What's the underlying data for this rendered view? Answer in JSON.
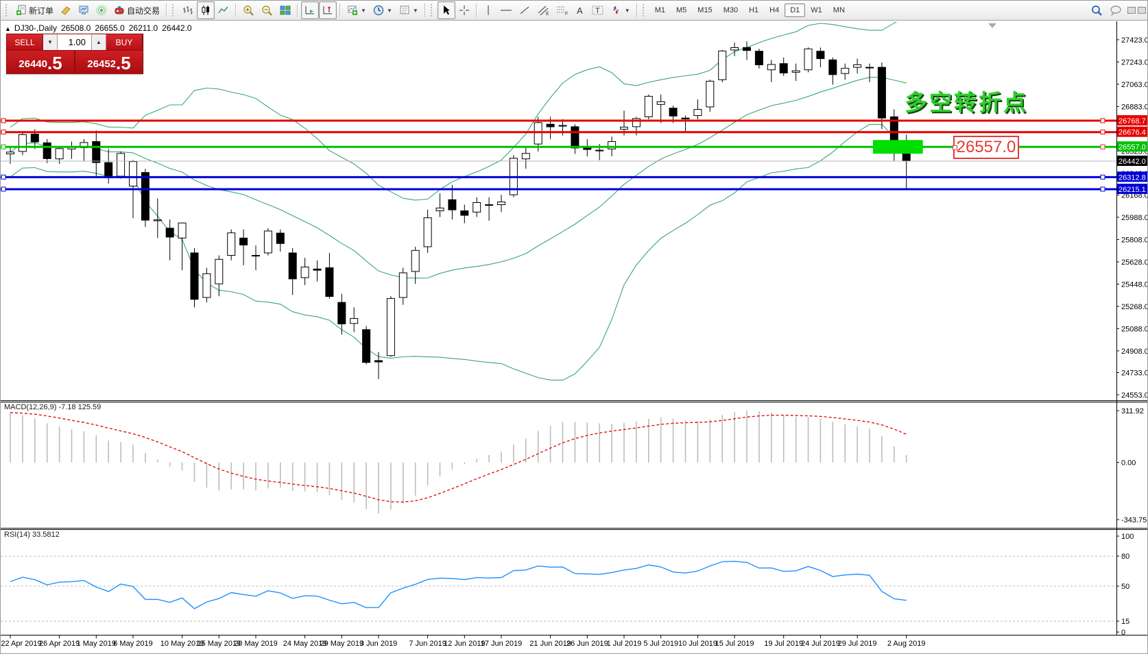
{
  "toolbar": {
    "new_order_label": "新订单",
    "auto_trading_label": "自动交易",
    "timeframes": [
      "M1",
      "M5",
      "M15",
      "M30",
      "H1",
      "H4",
      "D1",
      "W1",
      "MN"
    ],
    "active_timeframe": "D1",
    "icons": [
      "new-order",
      "profiles",
      "market-watch",
      "signals",
      "auto-trading",
      "bar-chart",
      "candlestick",
      "line-chart",
      "zoom-in",
      "zoom-out",
      "tile-windows",
      "auto-scroll",
      "chart-shift",
      "indicators",
      "periods",
      "templates",
      "cursor",
      "crosshair",
      "vertical-line",
      "horizontal-line",
      "trendline",
      "equidistant-channel",
      "fibonacci-retracement",
      "text",
      "text-label",
      "arrows",
      "search",
      "chat"
    ]
  },
  "trade_panel": {
    "sell_label": "SELL",
    "buy_label": "BUY",
    "volume": "1.00",
    "dec_icon": "▼",
    "inc_icon": "▲",
    "sell_price_int": "26440",
    "sell_price_frac": ".5",
    "buy_price_int": "26452",
    "buy_price_frac": ".5"
  },
  "chart_header": {
    "collapse_icon": "▲",
    "symbol_period": "DJ30-,Daily",
    "open": "26508.0",
    "high": "26655.0",
    "low": "26211.0",
    "close": "26442.0"
  },
  "annotations": {
    "turning_point_text": "多空转折点",
    "turning_point_color": "#2fd02f",
    "price_box_text": "26557.0",
    "price_box_color": "#e53935"
  },
  "chart_data": {
    "type": "candlestick",
    "symbol": "DJ30-",
    "period": "Daily",
    "price_axis_ticks": [
      "27423.0",
      "27243.0",
      "27063.0",
      "26883.0",
      "26703.0",
      "26523.0",
      "26343.0",
      "26168.0",
      "25988.0",
      "25808.0",
      "25628.0",
      "25448.0",
      "25268.0",
      "25088.0",
      "24908.0",
      "24733.0",
      "24553.0"
    ],
    "date_ticks": [
      {
        "label": "22 Apr 2019",
        "i": 0
      },
      {
        "label": "26 Apr 2019",
        "i": 4
      },
      {
        "label": "1 May 2019",
        "i": 7
      },
      {
        "label": "6 May 2019",
        "i": 10
      },
      {
        "label": "10 May 2019",
        "i": 14
      },
      {
        "label": "15 May 2019",
        "i": 17
      },
      {
        "label": "20 May 2019",
        "i": 20
      },
      {
        "label": "24 May 2019",
        "i": 24
      },
      {
        "label": "29 May 2019",
        "i": 27
      },
      {
        "label": "3 Jun 2019",
        "i": 30
      },
      {
        "label": "7 Jun 2019",
        "i": 34
      },
      {
        "label": "12 Jun 2019",
        "i": 37
      },
      {
        "label": "17 Jun 2019",
        "i": 40
      },
      {
        "label": "21 Jun 2019",
        "i": 44
      },
      {
        "label": "26 Jun 2019",
        "i": 47
      },
      {
        "label": "1 Jul 2019",
        "i": 50
      },
      {
        "label": "5 Jul 2019",
        "i": 53
      },
      {
        "label": "10 Jul 2019",
        "i": 56
      },
      {
        "label": "15 Jul 2019",
        "i": 59
      },
      {
        "label": "19 Jul 2019",
        "i": 63
      },
      {
        "label": "24 Jul 2019",
        "i": 66
      },
      {
        "label": "29 Jul 2019",
        "i": 69
      },
      {
        "label": "2 Aug 2019",
        "i": 73
      }
    ],
    "candles": [
      [
        26500,
        26560,
        26420,
        26515
      ],
      [
        26520,
        26680,
        26490,
        26656
      ],
      [
        26660,
        26700,
        26540,
        26597
      ],
      [
        26590,
        26620,
        26425,
        26462
      ],
      [
        26460,
        26560,
        26420,
        26543
      ],
      [
        26540,
        26600,
        26460,
        26554
      ],
      [
        26550,
        26620,
        26440,
        26592
      ],
      [
        26600,
        26690,
        26310,
        26430
      ],
      [
        26430,
        26540,
        26260,
        26307
      ],
      [
        26320,
        26520,
        26300,
        26504
      ],
      [
        26240,
        26450,
        25980,
        26438
      ],
      [
        26350,
        26380,
        25910,
        25965
      ],
      [
        25960,
        26140,
        25820,
        25967
      ],
      [
        25900,
        25970,
        25640,
        25828
      ],
      [
        25820,
        25945,
        25560,
        25942
      ],
      [
        25700,
        25740,
        25260,
        25325
      ],
      [
        25340,
        25580,
        25300,
        25532
      ],
      [
        25450,
        25680,
        25350,
        25648
      ],
      [
        25680,
        25890,
        25640,
        25862
      ],
      [
        25820,
        25890,
        25600,
        25764
      ],
      [
        25680,
        25760,
        25560,
        25679
      ],
      [
        25700,
        25900,
        25680,
        25877
      ],
      [
        25860,
        25890,
        25710,
        25776
      ],
      [
        25700,
        25740,
        25360,
        25490
      ],
      [
        25500,
        25660,
        25440,
        25586
      ],
      [
        25570,
        25640,
        25470,
        25560
      ],
      [
        25580,
        25700,
        25330,
        25348
      ],
      [
        25300,
        25370,
        25040,
        25126
      ],
      [
        25130,
        25260,
        25060,
        25170
      ],
      [
        25080,
        25110,
        24800,
        24815
      ],
      [
        24830,
        24900,
        24680,
        24819
      ],
      [
        24870,
        25350,
        24860,
        25332
      ],
      [
        25340,
        25580,
        25280,
        25539
      ],
      [
        25550,
        25750,
        25450,
        25720
      ],
      [
        25750,
        26050,
        25700,
        25984
      ],
      [
        26040,
        26180,
        25990,
        26063
      ],
      [
        26130,
        26250,
        25970,
        26048
      ],
      [
        26040,
        26090,
        25940,
        26004
      ],
      [
        26030,
        26150,
        25990,
        26107
      ],
      [
        26090,
        26150,
        25960,
        26089
      ],
      [
        26090,
        26170,
        26030,
        26112
      ],
      [
        26170,
        26490,
        26150,
        26465
      ],
      [
        26460,
        26560,
        26380,
        26504
      ],
      [
        26580,
        26800,
        26520,
        26753
      ],
      [
        26740,
        26800,
        26620,
        26719
      ],
      [
        26730,
        26780,
        26650,
        26728
      ],
      [
        26720,
        26740,
        26500,
        26548
      ],
      [
        26550,
        26620,
        26480,
        26536
      ],
      [
        26530,
        26580,
        26450,
        26526
      ],
      [
        26540,
        26640,
        26480,
        26600
      ],
      [
        26700,
        26850,
        26650,
        26717
      ],
      [
        26720,
        26800,
        26650,
        26786
      ],
      [
        26800,
        26980,
        26780,
        26966
      ],
      [
        26900,
        26980,
        26750,
        26922
      ],
      [
        26870,
        26890,
        26750,
        26806
      ],
      [
        26790,
        26810,
        26670,
        26783
      ],
      [
        26810,
        26940,
        26780,
        26860
      ],
      [
        26880,
        27100,
        26840,
        27088
      ],
      [
        27100,
        27340,
        27080,
        27332
      ],
      [
        27340,
        27400,
        27290,
        27359
      ],
      [
        27360,
        27410,
        27260,
        27336
      ],
      [
        27330,
        27350,
        27190,
        27220
      ],
      [
        27180,
        27260,
        27080,
        27223
      ],
      [
        27230,
        27280,
        27130,
        27154
      ],
      [
        27160,
        27230,
        27090,
        27172
      ],
      [
        27180,
        27360,
        27160,
        27349
      ],
      [
        27330,
        27360,
        27200,
        27270
      ],
      [
        27260,
        27280,
        27060,
        27141
      ],
      [
        27150,
        27230,
        27100,
        27192
      ],
      [
        27200,
        27270,
        27150,
        27221
      ],
      [
        27200,
        27230,
        27080,
        27198
      ],
      [
        27200,
        27240,
        26700,
        26790
      ],
      [
        26800,
        26860,
        26440,
        26508
      ],
      [
        26508,
        26655,
        26211,
        26442
      ]
    ],
    "hlines": [
      {
        "price": 26768.7,
        "label": "26768.7",
        "color": "#e60000"
      },
      {
        "price": 26676.4,
        "label": "26676.4",
        "color": "#e60000"
      },
      {
        "price": 26557.0,
        "label": "26557.0",
        "color": "#00c000"
      },
      {
        "price": 26312.8,
        "label": "26312.8",
        "color": "#0000d8"
      },
      {
        "price": 26215.1,
        "label": "26215.1",
        "color": "#0000d8"
      }
    ],
    "current_price": {
      "value": 26442.0,
      "label": "26442.0"
    },
    "highlight_box": {
      "start_index": 71,
      "end_index": 73,
      "price": 26557.0,
      "color": "#00dd00"
    },
    "indicators": {
      "bollinger": {
        "period": 20,
        "deviation": 2,
        "color": "#3aa76d"
      },
      "macd": {
        "label": "MACD(12,26,9) -7.18 125.59",
        "fast": 12,
        "slow": 26,
        "signal": 9,
        "value": -7.18,
        "signal_value": 125.59,
        "axis_ticks": [
          "311.92",
          "0.00",
          "-343.75"
        ],
        "histogram_color": "#bcbcbc",
        "signal_color": "#e00000"
      },
      "rsi": {
        "label": "RSI(14) 33.5812",
        "period": 14,
        "value": 33.5812,
        "axis_ticks": [
          "100",
          "80",
          "50",
          "15",
          "0"
        ],
        "levels": [
          80,
          50,
          15
        ],
        "line_color": "#1E90FF"
      }
    }
  }
}
